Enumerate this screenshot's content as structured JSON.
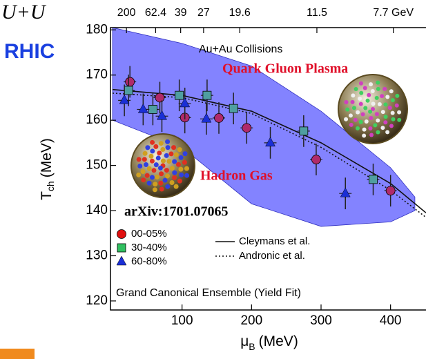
{
  "chart_data": {
    "type": "scatter",
    "corner_labels": [
      "U+U",
      "RHIC"
    ],
    "annotations": [
      "Au+Au Collisions",
      "Quark Gluon Plasma",
      "Hadron Gas",
      "arXiv:1701.07065",
      "Grand Canonical Ensemble (Yield Fit)"
    ],
    "y_label": {
      "main": "T",
      "sub": "ch",
      "unit": "(MeV)"
    },
    "x_label": {
      "main": "μ",
      "sub": "B",
      "unit": "(MeV)"
    },
    "xlim": [
      -3,
      451
    ],
    "ylim": [
      118,
      180.5
    ],
    "xticks": [
      100,
      200,
      300,
      400
    ],
    "yticks": [
      120,
      130,
      140,
      150,
      160,
      170,
      180
    ],
    "top_ticks": [
      {
        "value": 20,
        "label": "200"
      },
      {
        "value": 62,
        "label": "62.4"
      },
      {
        "value": 98,
        "label": "39"
      },
      {
        "value": 131,
        "label": "27"
      },
      {
        "value": 183,
        "label": "19.6"
      },
      {
        "value": 294,
        "label": "11.5"
      },
      {
        "value": 404,
        "label": "7.7 GeV"
      }
    ],
    "band": {
      "color": "#5a5aff",
      "x": [
        0,
        100,
        200,
        300,
        400,
        435
      ],
      "upper": [
        180.5,
        177,
        172,
        162,
        149.5,
        143
      ],
      "lower": [
        160,
        154,
        141.5,
        136.5,
        137.5,
        140
      ]
    },
    "series": [
      {
        "name": "00-05%",
        "marker": "circle",
        "color": "#b02a6a",
        "legend_color": "#e01010",
        "x": [
          25,
          68,
          104,
          153,
          193,
          293,
          400
        ],
        "values": [
          168.5,
          165,
          160.6,
          160.5,
          158.3,
          151.3,
          144.4
        ],
        "errors": [
          3.5,
          3.5,
          3.5,
          3.5,
          3.5,
          3.5,
          3.5
        ]
      },
      {
        "name": "30-40%",
        "marker": "square",
        "color": "#4f9ea0",
        "legend_color": "#30c060",
        "x": [
          23,
          58,
          96,
          136,
          174,
          275,
          375
        ],
        "values": [
          166.6,
          162.4,
          165.5,
          165.5,
          162.6,
          157.6,
          146.9
        ],
        "errors": [
          3.5,
          3.5,
          3.5,
          3.5,
          3.5,
          3.5,
          3.5
        ]
      },
      {
        "name": "60-80%",
        "marker": "triangle",
        "color": "#1a2fd6",
        "legend_color": "#1a2fd6",
        "x": [
          17,
          44,
          71,
          104,
          135,
          227,
          335
        ],
        "values": [
          164.4,
          162.4,
          160.9,
          163.7,
          160.3,
          155,
          143.8
        ],
        "errors": [
          3.5,
          3.5,
          3.5,
          3.5,
          3.5,
          3.5,
          3.5
        ]
      }
    ],
    "lines": [
      {
        "name": "Cleymans et al.",
        "dashed": false,
        "x": [
          0,
          100,
          200,
          300,
          400,
          451
        ],
        "values": [
          166.8,
          165.5,
          162,
          155,
          146,
          139.5
        ]
      },
      {
        "name": "Andronic et al.",
        "dashed": true,
        "x": [
          0,
          100,
          200,
          300,
          400,
          451
        ],
        "values": [
          166,
          165,
          161.5,
          154,
          144.5,
          138.5
        ]
      }
    ]
  }
}
